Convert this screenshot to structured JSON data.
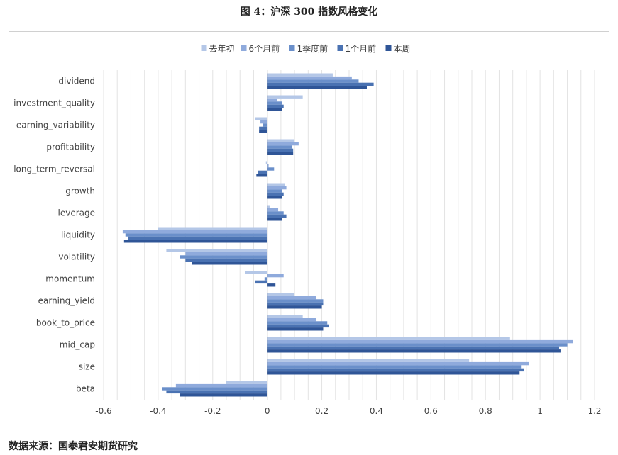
{
  "figure_title": "图 4：沪深 300 指数风格变化",
  "source_note": "数据来源：国泰君安期货研究",
  "chart_data": {
    "type": "bar",
    "orientation": "horizontal",
    "categories": [
      "dividend",
      "investment_quality",
      "earning_variability",
      "profitability",
      "long_term_reversal",
      "growth",
      "leverage",
      "liquidity",
      "volatility",
      "momentum",
      "earning_yield",
      "book_to_price",
      "mid_cap",
      "size",
      "beta"
    ],
    "series": [
      {
        "name": "去年初",
        "color": "#b4c7e7",
        "values": [
          0.24,
          0.13,
          -0.045,
          0.1,
          -0.005,
          0.065,
          0.01,
          -0.4,
          -0.37,
          -0.08,
          0.1,
          0.13,
          0.89,
          0.74,
          -0.15
        ]
      },
      {
        "name": "6个月前",
        "color": "#8faadc",
        "values": [
          0.31,
          0.035,
          -0.025,
          0.115,
          0.005,
          0.07,
          0.04,
          -0.53,
          -0.3,
          0.06,
          0.18,
          0.18,
          1.12,
          0.96,
          -0.335
        ]
      },
      {
        "name": "1季度前",
        "color": "#6a8fca",
        "values": [
          0.335,
          0.055,
          -0.015,
          0.09,
          0.025,
          0.055,
          0.06,
          -0.52,
          -0.32,
          -0.01,
          0.205,
          0.22,
          1.1,
          0.93,
          -0.385
        ]
      },
      {
        "name": "1个月前",
        "color": "#4a72b2",
        "values": [
          0.39,
          0.06,
          -0.03,
          0.095,
          -0.035,
          0.06,
          0.07,
          -0.51,
          -0.3,
          -0.045,
          0.205,
          0.225,
          1.07,
          0.94,
          -0.37
        ]
      },
      {
        "name": "本周",
        "color": "#2f5597",
        "values": [
          0.365,
          0.055,
          -0.03,
          0.095,
          -0.04,
          0.055,
          0.055,
          -0.525,
          -0.275,
          0.03,
          0.2,
          0.205,
          1.075,
          0.925,
          -0.32
        ]
      }
    ],
    "x_ticks": [
      -0.6,
      -0.4,
      -0.2,
      0,
      0.2,
      0.4,
      0.6,
      0.8,
      1,
      1.2
    ],
    "xlim": [
      -0.6,
      1.2
    ],
    "grid": true,
    "legend_position": "top"
  }
}
